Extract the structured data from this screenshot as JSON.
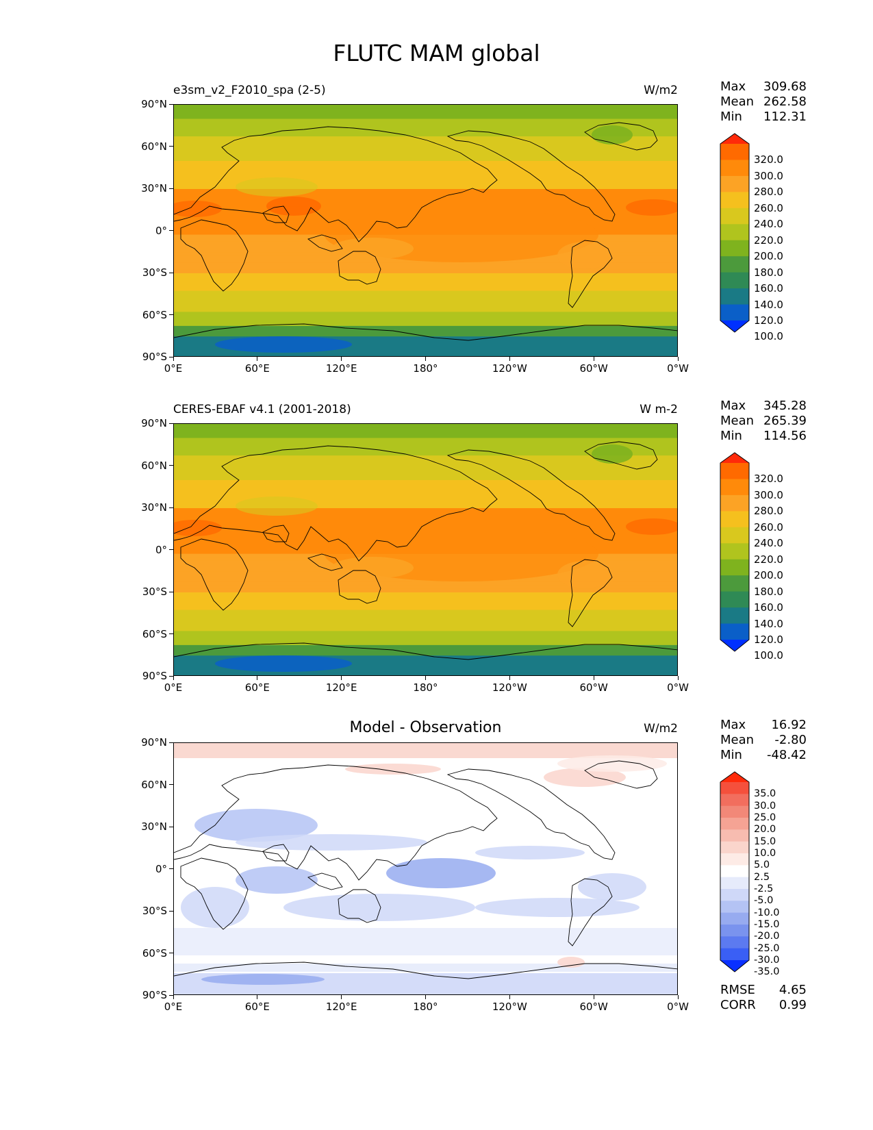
{
  "figure_title": "FLUTC MAM global",
  "lat_ticks": [
    "90°N",
    "60°N",
    "30°N",
    "0°",
    "30°S",
    "60°S",
    "90°S"
  ],
  "lon_ticks": [
    "0°E",
    "60°E",
    "120°E",
    "180°",
    "120°W",
    "60°W",
    "0°W"
  ],
  "panels": [
    {
      "left_title": "e3sm_v2_F2010_spa (2-5)",
      "center_title": "",
      "units": "W/m2",
      "stats": {
        "labels": [
          "Max",
          "Mean",
          "Min"
        ],
        "values": [
          "309.68",
          "262.58",
          "112.31"
        ]
      },
      "colorbar": {
        "levels": [
          "320.0",
          "300.0",
          "280.0",
          "260.0",
          "240.0",
          "220.0",
          "200.0",
          "180.0",
          "160.0",
          "140.0",
          "120.0",
          "100.0"
        ],
        "colors": [
          "#ff2a0a",
          "#ff6a00",
          "#ff8a0a",
          "#fca325",
          "#f5c01e",
          "#d9c81e",
          "#b0c41e",
          "#7fb31e",
          "#4c9a3c",
          "#2f8a55",
          "#1a7a85",
          "#0a5fc8",
          "#0030ff"
        ]
      }
    },
    {
      "left_title": "CERES-EBAF v4.1 (2001-2018)",
      "center_title": "",
      "units": "W m-2",
      "stats": {
        "labels": [
          "Max",
          "Mean",
          "Min"
        ],
        "values": [
          "345.28",
          "265.39",
          "114.56"
        ]
      },
      "colorbar": {
        "levels": [
          "320.0",
          "300.0",
          "280.0",
          "260.0",
          "240.0",
          "220.0",
          "200.0",
          "180.0",
          "160.0",
          "140.0",
          "120.0",
          "100.0"
        ],
        "colors": [
          "#ff2a0a",
          "#ff6a00",
          "#ff8a0a",
          "#fca325",
          "#f5c01e",
          "#d9c81e",
          "#b0c41e",
          "#7fb31e",
          "#4c9a3c",
          "#2f8a55",
          "#1a7a85",
          "#0a5fc8",
          "#0030ff"
        ]
      }
    },
    {
      "left_title": "",
      "center_title": "Model - Observation",
      "units": "W/m2",
      "stats": {
        "labels": [
          "Max",
          "Mean",
          "Min"
        ],
        "values": [
          "16.92",
          "-2.80",
          "-48.42"
        ]
      },
      "extra_stats": {
        "labels": [
          "RMSE",
          "CORR"
        ],
        "values": [
          "4.65",
          "0.99"
        ]
      },
      "colorbar": {
        "levels": [
          "35.0",
          "30.0",
          "25.0",
          "20.0",
          "15.0",
          "10.0",
          "5.0",
          "2.5",
          "-2.5",
          "-5.0",
          "-10.0",
          "-15.0",
          "-20.0",
          "-25.0",
          "-30.0",
          "-35.0"
        ],
        "colors": [
          "#ff2a0a",
          "#f5503c",
          "#f26e5e",
          "#f28878",
          "#f5a394",
          "#f7bcb0",
          "#fad5cc",
          "#fdebe6",
          "#ffffff",
          "#e6ebfb",
          "#cfd8f8",
          "#b4c3f4",
          "#97abf0",
          "#7a93ee",
          "#5c7af0",
          "#3a5ff5",
          "#0a30ff"
        ]
      }
    }
  ]
}
